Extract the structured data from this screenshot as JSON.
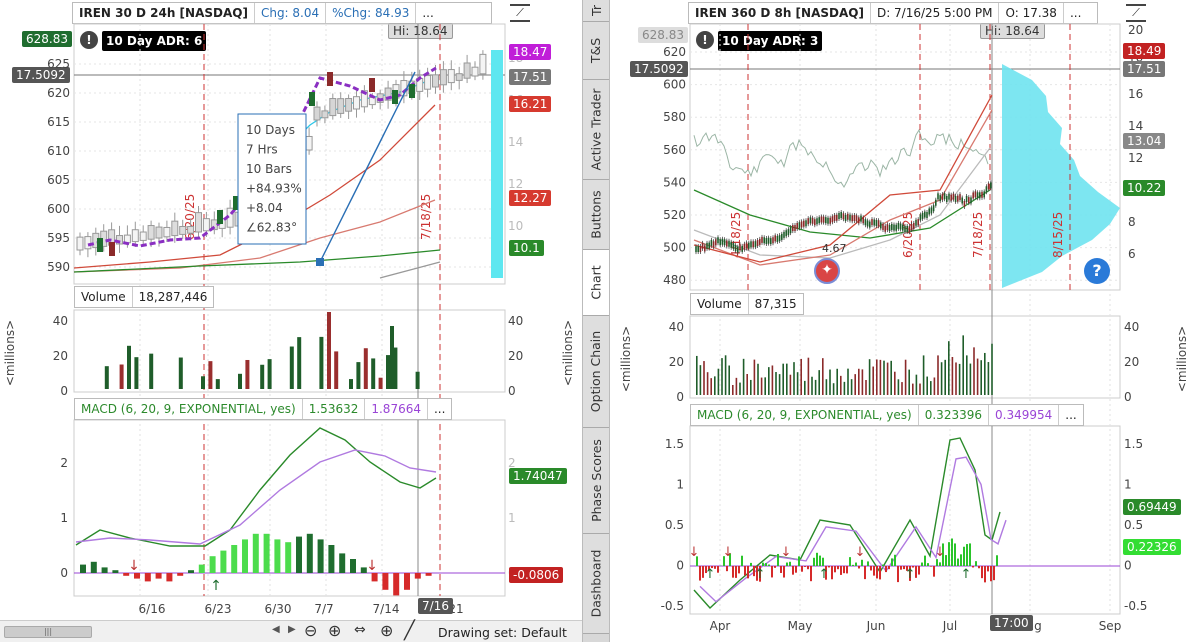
{
  "left_chart": {
    "header": {
      "symbol": "IREN 30 D 24h [NASDAQ]",
      "chg": "Chg: 8.04",
      "pchg": "%Chg: 84.93",
      "more": "..."
    },
    "adr": "10 Day ADR: 6",
    "top_left_price": "628.83",
    "crosshair_price": "17.5092",
    "hi_label": "Hi: 18.64",
    "price_ticks_left": [
      "625",
      "620",
      "615",
      "610",
      "605",
      "600",
      "595",
      "590"
    ],
    "price_ticks_right": [
      "18",
      "16",
      "14",
      "12",
      "10"
    ],
    "right_tags": [
      {
        "text": "18.47",
        "color": "#c01ed8"
      },
      {
        "text": "17.51",
        "color": "#777777"
      },
      {
        "text": "16.21",
        "color": "#d63a2f"
      },
      {
        "text": "12.27",
        "color": "#d63a2f"
      },
      {
        "text": "10.1",
        "color": "#2a8a2a"
      }
    ],
    "date_vlines": [
      "6/20/25",
      "7/18/25"
    ],
    "measure_box": [
      "10 Days",
      "7 Hrs",
      "10 Bars",
      "+84.93%",
      "+8.04",
      "∠62.83°"
    ],
    "volume_header": {
      "label": "Volume",
      "value": "18,287,446"
    },
    "volume_ticks": [
      "40",
      "20",
      "0"
    ],
    "volume_unit": "<millions>",
    "macd_header": {
      "label": "MACD (6, 20, 9, EXPONENTIAL, yes)",
      "v1": "1.53632",
      "v2": "1.87664",
      "more": "..."
    },
    "macd_ticks": [
      "2",
      "1",
      "0"
    ],
    "macd_tags": [
      {
        "text": "1.74047",
        "color": "#2a8a2a"
      },
      {
        "text": "-0.0806",
        "color": "#c22222"
      }
    ],
    "x_labels": [
      "6/16",
      "6/23",
      "6/30",
      "7/7",
      "7/14",
      "7/16",
      "21"
    ],
    "drawing_set": "Drawing set: Default"
  },
  "sidebar_tabs": [
    "Tr",
    "T&S",
    "Active Trader",
    "Buttons",
    "Chart",
    "Option Chain",
    "Phase Scores",
    "Dashboard"
  ],
  "right_chart": {
    "header": {
      "symbol": "IREN 360 D 8h [NASDAQ]",
      "date": "D: 7/16/25 5:00 PM",
      "open": "O: 17.38",
      "more": "..."
    },
    "adr": "10 Day ADR: 3",
    "top_left_price": "628.83",
    "crosshair_price": "17.5092",
    "hi_label": "Hi: 18.64",
    "price_ticks_left": [
      "620",
      "600",
      "580",
      "560",
      "540",
      "520",
      "500",
      "480"
    ],
    "price_ticks_right": [
      "20",
      "18",
      "16",
      "14",
      "12",
      "10",
      "8",
      "6"
    ],
    "right_tags": [
      {
        "text": "18.49",
        "color": "#c22222"
      },
      {
        "text": "17.51",
        "color": "#777777"
      },
      {
        "text": "13.04",
        "color": "#888888"
      },
      {
        "text": "10.22",
        "color": "#2a8a2a"
      }
    ],
    "date_vlines": [
      "4/18/25",
      "6/20/25",
      "7/18/25",
      "8/15/25"
    ],
    "low_label": "4.67",
    "volume_header": {
      "label": "Volume",
      "value": "87,315"
    },
    "volume_ticks": [
      "40",
      "20",
      "0"
    ],
    "volume_unit": "<millions>",
    "macd_header": {
      "label": "MACD (6, 20, 9, EXPONENTIAL, yes)",
      "v1": "0.323396",
      "v2": "0.349954",
      "more": "..."
    },
    "macd_ticks": [
      "1.5",
      "1",
      "0.5",
      "0",
      "-0.5"
    ],
    "macd_tags": [
      {
        "text": "0.69449",
        "color": "#2a8a2a"
      },
      {
        "text": "0.22326",
        "color": "#33dd33"
      }
    ],
    "x_labels": [
      "Apr",
      "May",
      "Jun",
      "Jul",
      "Aug",
      "Sep"
    ],
    "time_tag": "17:00"
  }
}
